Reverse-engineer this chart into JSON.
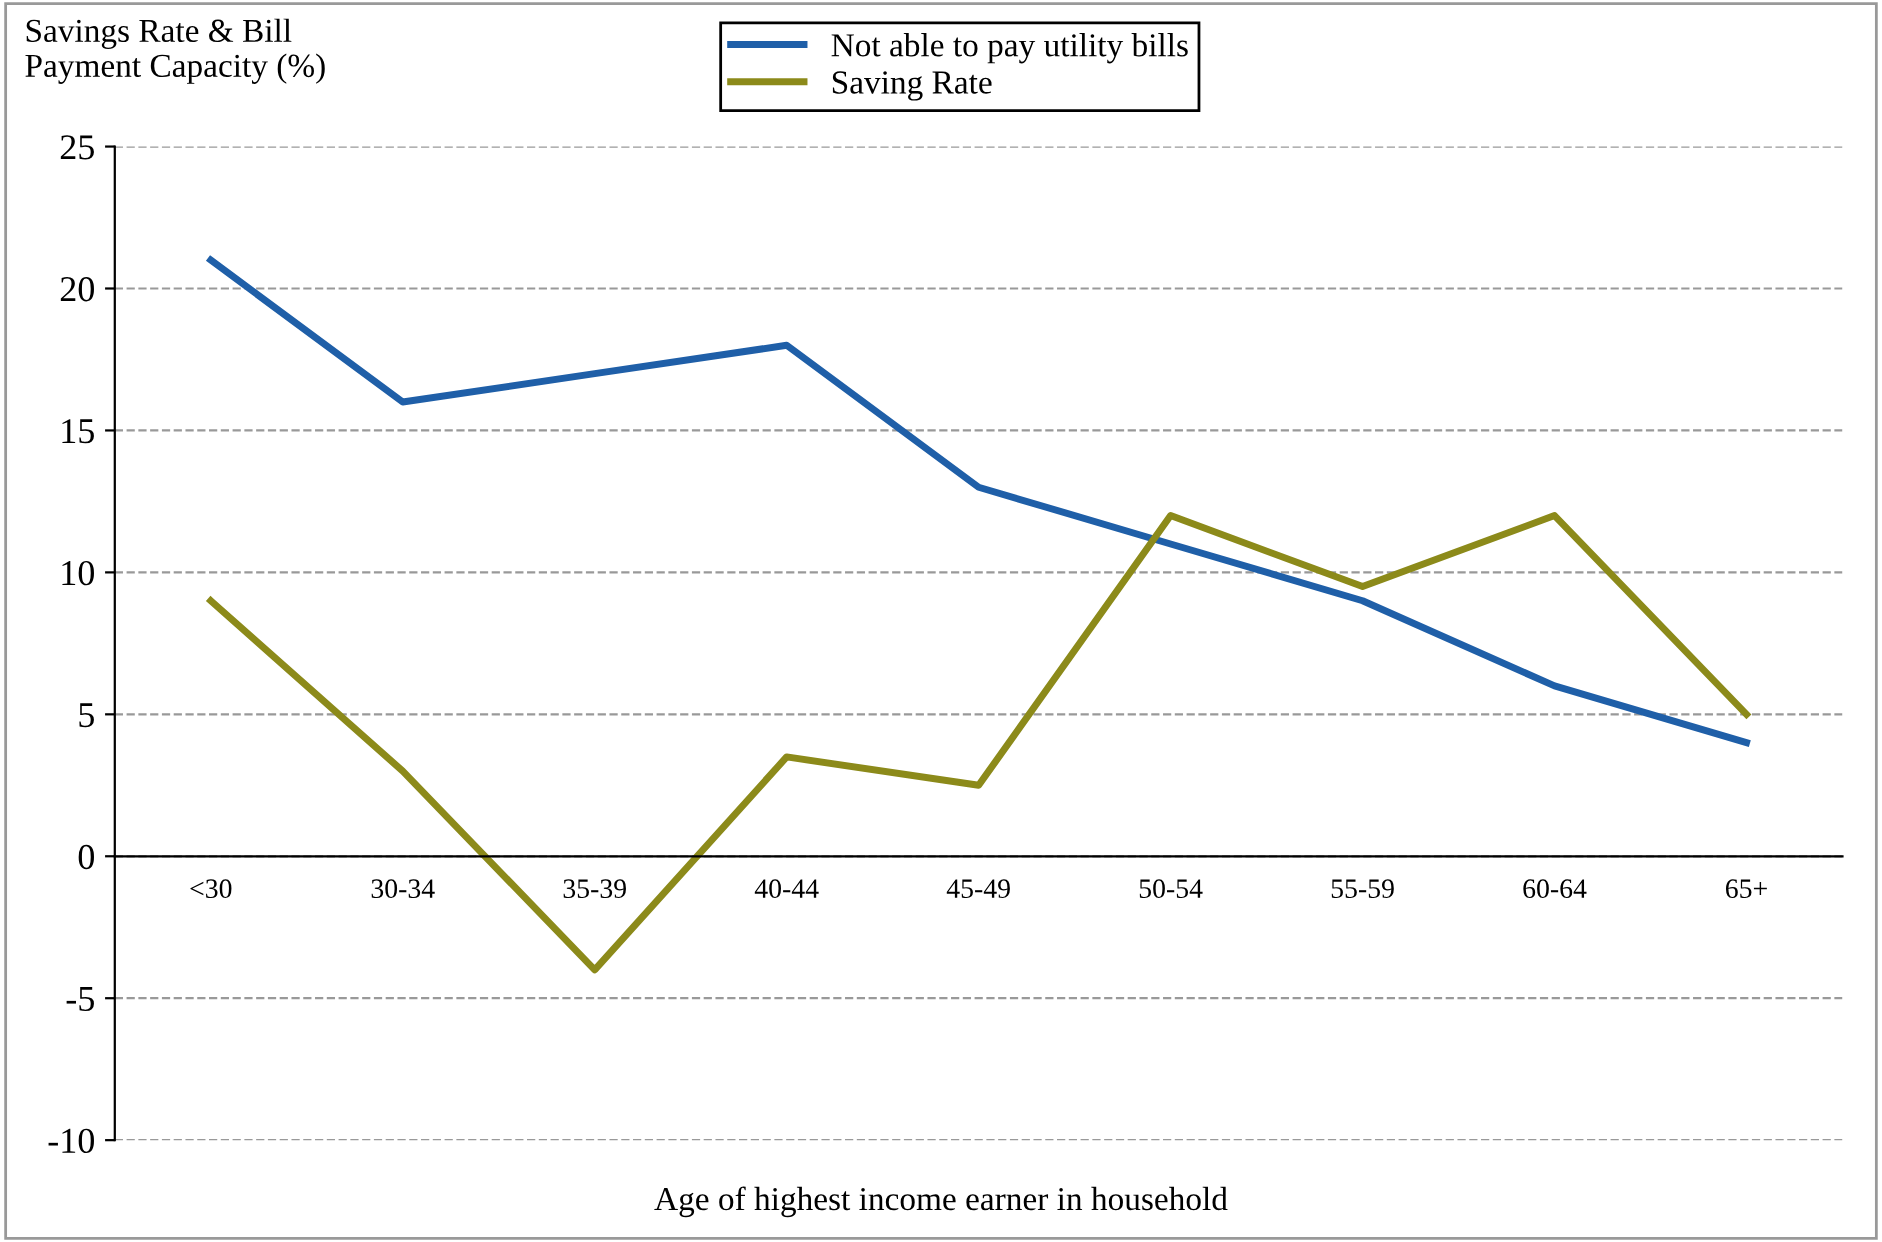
{
  "chart_data": {
    "type": "line",
    "ylabel": "Savings Rate & Bill\nPayment Capacity (%)",
    "xlabel": "Age of highest income earner in household",
    "categories": [
      "<30",
      "30-34",
      "35-39",
      "40-44",
      "45-49",
      "50-54",
      "55-59",
      "60-64",
      "65+"
    ],
    "series": [
      {
        "name": "Not able to pay utility bills",
        "color": "#1f5fa8",
        "values": [
          21,
          16,
          17,
          18,
          13,
          11,
          9,
          6,
          4
        ]
      },
      {
        "name": "Saving Rate",
        "color": "#8c8a1a",
        "values": [
          9,
          3,
          -4,
          3.5,
          2.5,
          12,
          9.5,
          12,
          5
        ]
      }
    ],
    "ylim": [
      -10,
      25
    ],
    "yticks": [
      -10,
      -5,
      0,
      5,
      10,
      15,
      20,
      25
    ],
    "grid": "y",
    "legend": "top",
    "marker": "none",
    "line_style": "solid"
  }
}
